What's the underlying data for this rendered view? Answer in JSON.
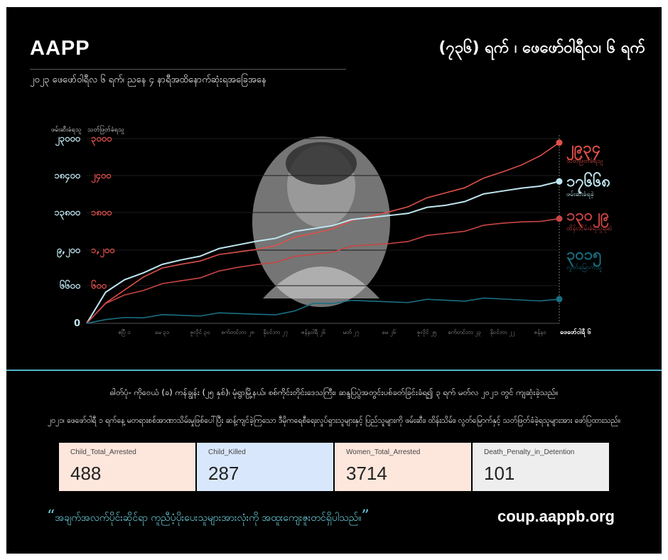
{
  "header": {
    "brand": "AAPP",
    "headline": "(၇၃၆) ရက် ၊ ဖေဖော်ဝါရီလ၊ ၆ ရက်",
    "subhead": "၂၀၂၃ ဖေဖော်ဝါရီလ ၆ ရက်၊ ညနေ ၄ နာရီအထိနောက်ဆုံးရအခြေအနေ"
  },
  "colors": {
    "killed": "#e0504a",
    "arrested": "#bfe6f0",
    "detained": "#c94444",
    "released": "#1a6f82",
    "accent": "#4fb6c6"
  },
  "chart_data": {
    "type": "line",
    "y_left_label": "ဖမ်းဆီးခံရသူ",
    "y_right_label": "သတ်ဖြတ်ခံရသူ",
    "y_left_ticks": [
      "0",
      "၆၆၀၀",
      "၉,၂၀၀",
      "၁၃၈၀၀",
      "၁၈၄၀၀",
      "၂၃၀၀၀"
    ],
    "y_right_ticks": [
      "၆၀၀",
      "၁,၂၀၀",
      "၁၈၀၀",
      "၂၄၀၀",
      "၃၀၀၀"
    ],
    "x_ticks": [
      "ဧပြီ ၁",
      "မေ ၃၁",
      "ဇူလိုင် ၃၀",
      "စက်တင်ဘာ ၂၈",
      "နိုဝင်ဘာ ၂၇",
      "ဇန်နဝါရီ ၂၆",
      "မတ် ၂၇",
      "မေ ၂၆",
      "ဇူလိုင် ၂၅",
      "စက်တင်ဘာ ၂၃",
      "နိုဝင်ဘာ ၂၂",
      "ဇန်နဝ"
    ],
    "x_end_label": "ဖေဖော်ဝါရီ ၆",
    "ylim_left": [
      0,
      23000
    ],
    "ylim_right": [
      0,
      3000
    ],
    "series": [
      {
        "key": "killed",
        "axis": "right",
        "end_value": "၂၉၃၄",
        "end_label": "သတ်ဖြတ်ခံရသူ",
        "values": [
          0,
          320,
          550,
          780,
          880,
          960,
          1030,
          1090,
          1150,
          1210,
          1290,
          1380,
          1460,
          1550,
          1640,
          1730,
          1820,
          1920,
          2020,
          2120,
          2220,
          2330,
          2450,
          2580,
          2750,
          2934
        ]
      },
      {
        "key": "arrested",
        "axis": "left",
        "end_value": "၁၇၆၆၈",
        "end_label": "ဖမ်းဆီးခံရခဲ့",
        "values": [
          0,
          3800,
          5500,
          6500,
          7200,
          7900,
          8500,
          9100,
          9700,
          10300,
          10800,
          11300,
          11800,
          12300,
          12700,
          13100,
          13500,
          13900,
          14300,
          14700,
          15300,
          15900,
          16400,
          16900,
          17300,
          17668
        ]
      },
      {
        "key": "detained",
        "axis": "left",
        "end_value": "၁၃၀၂၉",
        "end_label": "ထိန်းသိမ်းခံရသူရဆဲ",
        "values": [
          0,
          2400,
          3600,
          4300,
          4800,
          5300,
          5800,
          6300,
          6900,
          7400,
          7800,
          8200,
          8600,
          9000,
          9400,
          9700,
          10000,
          10400,
          10800,
          11200,
          11600,
          12000,
          12400,
          12700,
          12900,
          13029
        ]
      },
      {
        "key": "released",
        "axis": "left",
        "end_value": "၃၀၁၅",
        "end_label": "လွတ်မြောက်သူ",
        "values": [
          0,
          400,
          800,
          900,
          950,
          1000,
          1050,
          1100,
          1150,
          1200,
          1280,
          1400,
          2500,
          2600,
          2650,
          2700,
          2750,
          2800,
          2850,
          2880,
          2900,
          2930,
          2960,
          2980,
          3000,
          3015
        ]
      }
    ]
  },
  "notes": {
    "line1": "ဓါတ်ပုံ- ကိုဝေယံ (ခ) ကန်ချွန်း (၂၅ နှစ်)၊ မုံရွာမြို့နယ်၊ စစ်ကိုင်းတိုင်းဒေသကြီး၊ ဆန္ဒပြပွဲအတွင်းပစ်ခတ်ခြင်းခံရ၍ ၃ ရက် မတ်လ ၂၀၂၁ တွင် ကျဆုံးခဲ့သည်။",
    "line2": "၂၀၂၁၊ ဖေဖော်ဝါရီ ၁ ရက်နေ့ မတရားစစ်အာဏာသိမ်းမှုဖြစ်ပေါ်ပြီး ဆန့်ကျင်ခဲ့ကြသော ဒီမိုကရေစီရေးလှုပ်ရှားသူများနှင့် ပြည်သူများကို ဖမ်းဆီး၊ ထိန်းသိမ်း၊ လွတ်မြောက်နှင့် သတ်ဖြတ်ခံခဲ့ရသူများအား ဖော်ပြထားသည်။"
  },
  "cards": [
    {
      "label": "Child_Total_Arrested",
      "value": "488",
      "bg": "#fde6dc"
    },
    {
      "label": "Child_Killed",
      "value": "287",
      "bg": "#d9e7fc"
    },
    {
      "label": "Women_Total_Arrested",
      "value": "3714",
      "bg": "#fde6dc"
    },
    {
      "label": "Death_Penalty_in_Detention",
      "value": "101",
      "bg": "#eeeeee"
    }
  ],
  "footer": {
    "quote": "အချက်အလက်ပိုင်းဆိုင်ရာ ကူညီပံ့ပိုးပေးသူများအားလုံးကို အထူးကျေးဇူးတင်ရှိပါသည်။",
    "site": "coup.aappb.org"
  }
}
